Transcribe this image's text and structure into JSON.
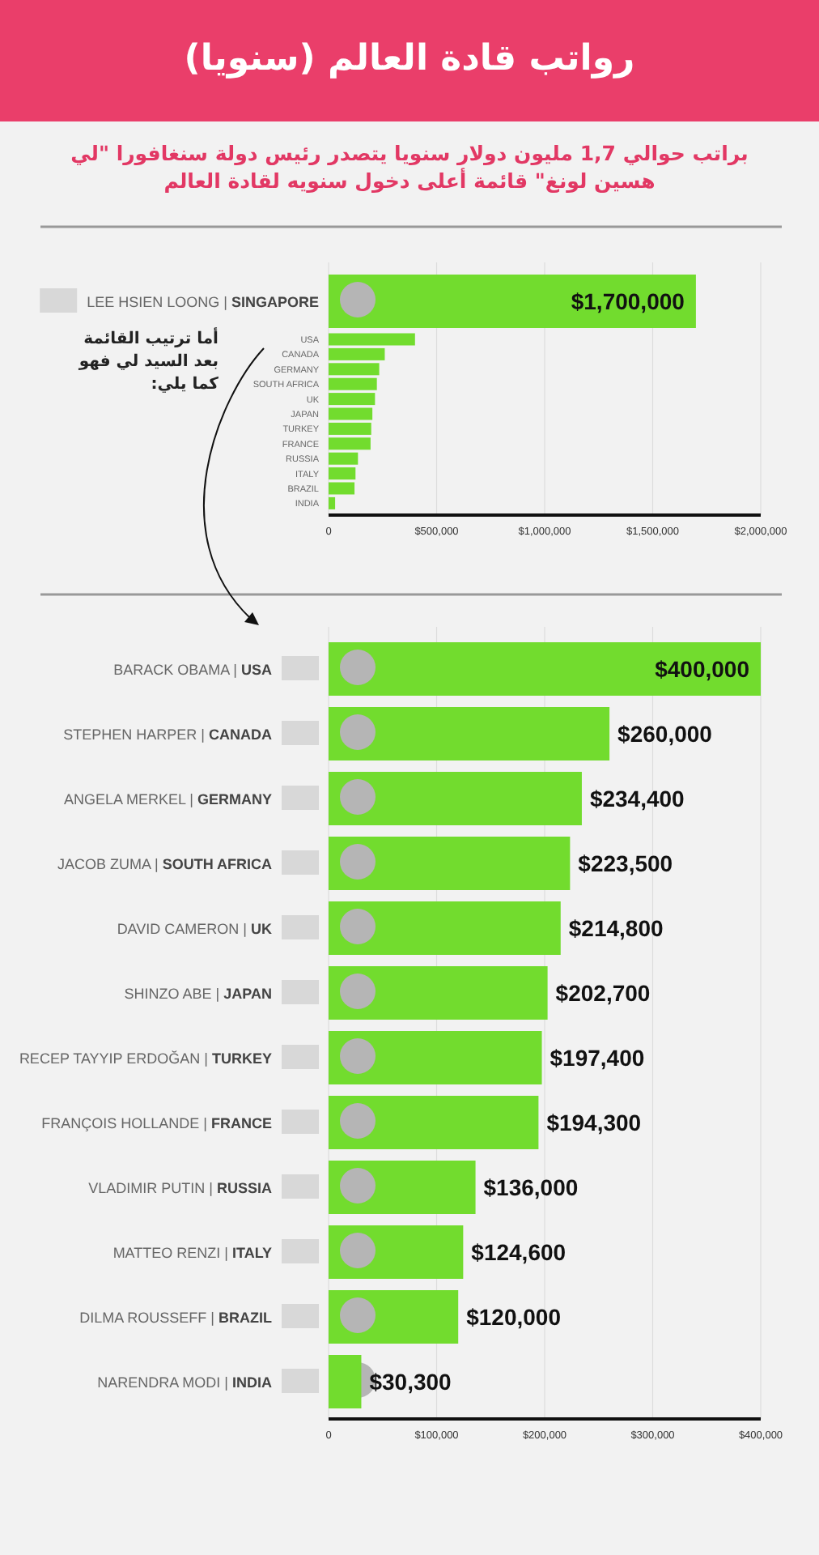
{
  "chart_data": [
    {
      "type": "bar",
      "orientation": "horizontal",
      "title": "رواتب قادة العالم (سنويا)",
      "subtitle": "براتب حوالي 1,7 مليون دولار سنويا يتصدر رئيس دولة سنغافورا \"لي هسين لونغ\" قائمة أعلى دخول سنويه لقادة العالم",
      "categories": [
        "LEE HSIEN LOONG | **SINGAPORE**"
      ],
      "values": [
        1700000
      ],
      "value_labels": [
        "$1,700,000"
      ],
      "color": "#72dc2e",
      "xlim": [
        0,
        2000000
      ],
      "tick_labels": "y",
      "annotations": [
        "أما ترتيب القائمة بعد السيد لي فهو كما يلي:"
      ]
    },
    {
      "type": "bar",
      "orientation": "horizontal",
      "categories": [
        "USA",
        "CANADA",
        "GERMANY",
        "SOUTH AFRICA",
        "UK",
        "JAPAN",
        "TURKEY",
        "FRANCE",
        "RUSSIA",
        "ITALY",
        "BRAZIL",
        "INDIA"
      ],
      "values": [
        400000,
        260000,
        234400,
        223500,
        214800,
        202700,
        197400,
        194300,
        136000,
        124600,
        120000,
        30300
      ],
      "color": "#72dc2e",
      "xlim": [
        0,
        2000000
      ],
      "xticks": [
        0,
        {
          "value": 500000,
          "label": "$500,000"
        },
        {
          "value": 1000000,
          "label": "$1,000,000"
        },
        {
          "value": 1500000,
          "label": "$1,500,000"
        },
        {
          "value": 2000000,
          "label": "$2,000,000"
        }
      ],
      "grid": "x"
    },
    {
      "type": "bar",
      "orientation": "horizontal",
      "categories": [
        "BARACK OBAMA | **USA**",
        "STEPHEN HARPER | **CANADA**",
        "ANGELA MERKEL | **GERMANY**",
        "JACOB ZUMA | **SOUTH AFRICA**",
        "DAVID CAMERON | **UK**",
        "SHINZO ABE | **JAPAN**",
        "RECEP TAYYIP ERDOĞAN | **TURKEY**",
        "FRANÇOIS HOLLANDE | **FRANCE**",
        "VLADIMIR PUTIN | **RUSSIA**",
        "MATTEO RENZI | **ITALY**",
        "DILMA ROUSSEFF | **BRAZIL**",
        "NARENDRA MODI | **INDIA**"
      ],
      "values": [
        400000,
        260000,
        234400,
        223500,
        214800,
        202700,
        197400,
        194300,
        136000,
        124600,
        120000,
        30300
      ],
      "value_labels": [
        "$400,000",
        "$260,000",
        "$234,400",
        "$223,500",
        "$214,800",
        "$202,700",
        "$197,400",
        "$194,300",
        "$136,000",
        "$124,600",
        "$120,000",
        "$30,300"
      ],
      "color": "#72dc2e",
      "xlim": [
        0,
        400000
      ],
      "xticks": [
        0,
        {
          "value": 100000,
          "label": "$100,000"
        },
        {
          "value": 200000,
          "label": "$200,000"
        },
        {
          "value": 300000,
          "label": "$300,000"
        },
        {
          "value": 400000,
          "label": "$400,000"
        }
      ],
      "grid": "x"
    }
  ]
}
